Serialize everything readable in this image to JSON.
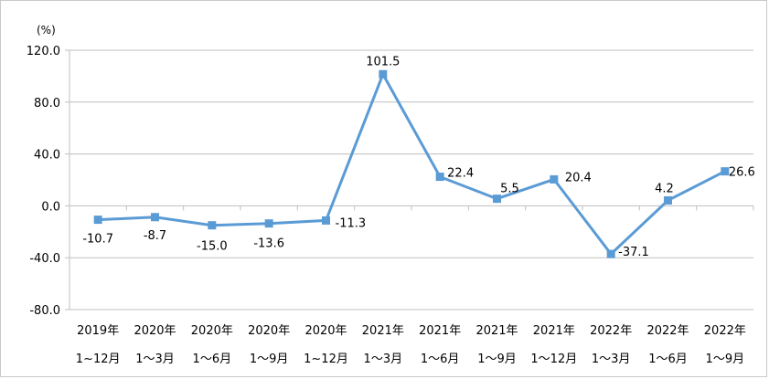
{
  "chart_data": {
    "type": "line",
    "title": "",
    "ylabel": "(%)",
    "xlabel": "",
    "ylim": [
      -80,
      120
    ],
    "yticks": [
      "120.0",
      "80.0",
      "40.0",
      "0.0",
      "-40.0",
      "-80.0"
    ],
    "ytick_values": [
      120,
      80,
      40,
      0,
      -40,
      -80
    ],
    "grid": true,
    "categories": [
      {
        "year": "2019年",
        "period": "1~12月"
      },
      {
        "year": "2020年",
        "period": "1～3月"
      },
      {
        "year": "2020年",
        "period": "1～6月"
      },
      {
        "year": "2020年",
        "period": "1～9月"
      },
      {
        "year": "2020年",
        "period": "1~12月"
      },
      {
        "year": "2021年",
        "period": "1～3月"
      },
      {
        "year": "2021年",
        "period": "1～6月"
      },
      {
        "year": "2021年",
        "period": "1～9月"
      },
      {
        "year": "2021年",
        "period": "1～12月"
      },
      {
        "year": "2022年",
        "period": "1～3月"
      },
      {
        "year": "2022年",
        "period": "1～6月"
      },
      {
        "year": "2022年",
        "period": "1～9月"
      }
    ],
    "values": [
      -10.7,
      -8.7,
      -15.0,
      -13.6,
      -11.3,
      101.5,
      22.4,
      5.5,
      20.4,
      -37.1,
      4.2,
      26.6
    ],
    "data_labels": [
      "-10.7",
      "-8.7",
      "-15.0",
      "-13.6",
      "-11.3",
      "101.5",
      "22.4",
      "5.5",
      "20.4",
      "-37.1",
      "4.2",
      "26.6"
    ],
    "line_color": "#5b9bd5",
    "grid_color": "#bfbfbf"
  }
}
